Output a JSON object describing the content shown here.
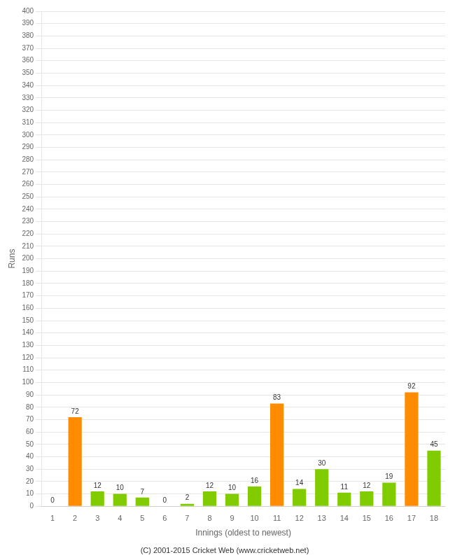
{
  "chart_data": {
    "type": "bar",
    "xlabel": "Innings (oldest to newest)",
    "ylabel": "Runs",
    "annotations": [
      "(C) 2001-2015 Cricket Web (www.cricketweb.net)"
    ],
    "categories": [
      "1",
      "2",
      "3",
      "4",
      "5",
      "6",
      "7",
      "8",
      "9",
      "10",
      "11",
      "12",
      "13",
      "14",
      "15",
      "16",
      "17",
      "18"
    ],
    "values": [
      0,
      72,
      12,
      10,
      7,
      0,
      2,
      12,
      10,
      16,
      83,
      14,
      30,
      11,
      12,
      19,
      92,
      45
    ],
    "colors": [
      "#80cc00",
      "#ff8c00",
      "#80cc00",
      "#80cc00",
      "#80cc00",
      "#80cc00",
      "#80cc00",
      "#80cc00",
      "#80cc00",
      "#80cc00",
      "#ff8c00",
      "#80cc00",
      "#80cc00",
      "#80cc00",
      "#80cc00",
      "#80cc00",
      "#ff8c00",
      "#80cc00"
    ],
    "ylim": [
      0,
      400
    ],
    "yticks": [
      0,
      10,
      20,
      30,
      40,
      50,
      60,
      70,
      80,
      90,
      100,
      110,
      120,
      130,
      140,
      150,
      160,
      170,
      180,
      190,
      200,
      210,
      220,
      230,
      240,
      250,
      260,
      270,
      280,
      290,
      300,
      310,
      320,
      330,
      340,
      350,
      360,
      370,
      380,
      390,
      400
    ],
    "grid": true,
    "data_labels": true
  }
}
